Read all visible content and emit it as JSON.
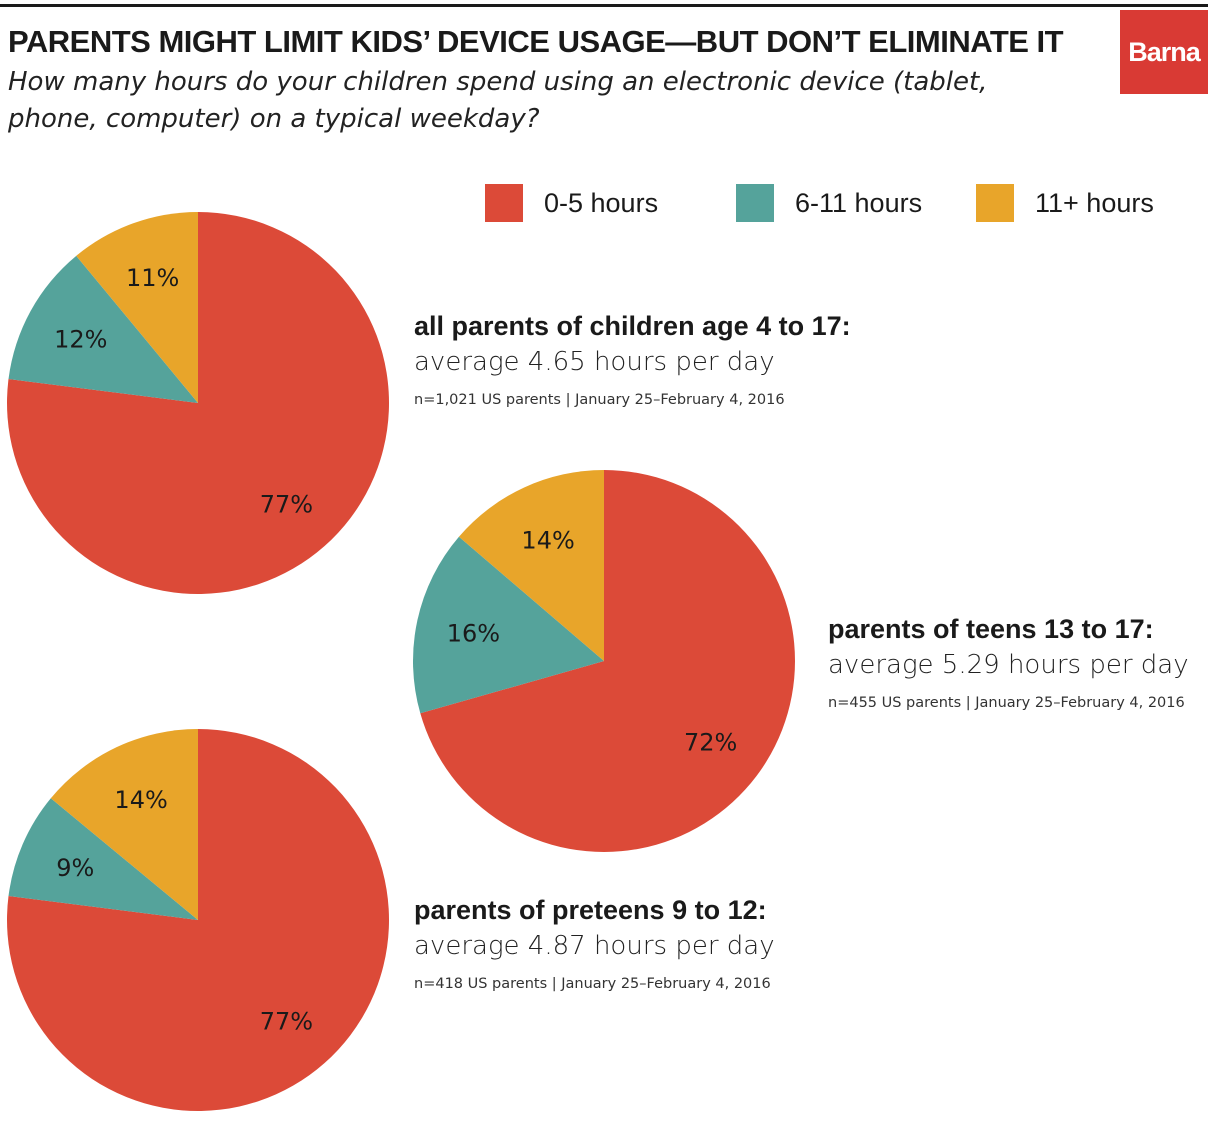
{
  "header": {
    "title": "PARENTS MIGHT LIMIT KIDS’ DEVICE USAGE—BUT DON’T ELIMINATE IT",
    "subtitle": "How many hours do your children spend using an electronic device (tablet, phone, computer) on a typical weekday?",
    "logo": "Barna"
  },
  "colors": {
    "0-5 hours": "#dc4a38",
    "6-11 hours": "#55a39b",
    "11+ hours": "#e8a52a"
  },
  "legend": [
    {
      "label": "0-5 hours",
      "color": "#dc4a38"
    },
    {
      "label": "6-11 hours",
      "color": "#55a39b"
    },
    {
      "label": "11+ hours",
      "color": "#e8a52a"
    }
  ],
  "chart_data": [
    {
      "type": "pie",
      "group": "all parents of children age 4 to 17:",
      "average": "average 4.65 hours per day",
      "note": "n=1,021 US parents | January 25–February 4, 2016",
      "slices": [
        {
          "label": "0-5 hours",
          "value": 77,
          "text": "77%"
        },
        {
          "label": "6-11 hours",
          "value": 12,
          "text": "12%"
        },
        {
          "label": "11+ hours",
          "value": 11,
          "text": "11%"
        }
      ]
    },
    {
      "type": "pie",
      "group": "parents of teens 13 to 17:",
      "average": "average 5.29 hours per day",
      "note": "n=455 US parents | January 25–February 4, 2016",
      "slices": [
        {
          "label": "0-5 hours",
          "value": 72,
          "text": "72%"
        },
        {
          "label": "6-11 hours",
          "value": 16,
          "text": "16%"
        },
        {
          "label": "11+ hours",
          "value": 14,
          "text": "14%"
        }
      ]
    },
    {
      "type": "pie",
      "group": "parents of preteens 9 to 12:",
      "average": "average 4.87 hours per day",
      "note": "n=418 US parents | January 25–February 4, 2016",
      "slices": [
        {
          "label": "0-5 hours",
          "value": 77,
          "text": "77%"
        },
        {
          "label": "6-11 hours",
          "value": 9,
          "text": "9%"
        },
        {
          "label": "11+ hours",
          "value": 14,
          "text": "14%"
        }
      ]
    }
  ]
}
